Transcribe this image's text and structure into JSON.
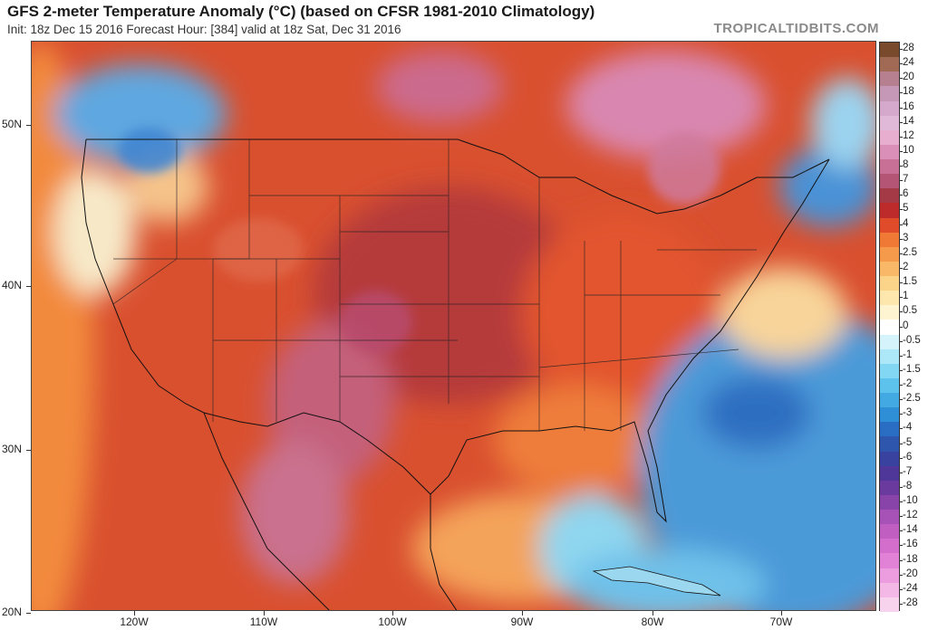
{
  "header": {
    "title": "GFS 2-meter Temperature Anomaly (°C) (based on CFSR 1981-2010 Climatology)",
    "subtitle": "Init: 18z Dec 15 2016   Forecast Hour: [384]   valid at 18z Sat, Dec 31 2016",
    "credit": "TROPICALTIDBITS.COM"
  },
  "map": {
    "lat_labels": [
      "50N",
      "40N",
      "30N",
      "20N"
    ],
    "lon_labels": [
      "120W",
      "110W",
      "100W",
      "90W",
      "80W",
      "70W"
    ],
    "regions": [
      {
        "name": "western-us-land",
        "anomaly": 4
      },
      {
        "name": "pacific-northwest",
        "anomaly": -2
      },
      {
        "name": "great-plains",
        "anomaly": 7
      },
      {
        "name": "hudson-bay-region",
        "anomaly": 16
      },
      {
        "name": "eastern-us",
        "anomaly": 5
      },
      {
        "name": "gulf-of-mexico",
        "anomaly": 2.5
      },
      {
        "name": "western-atlantic",
        "anomaly": -3
      },
      {
        "name": "nova-scotia-area",
        "anomaly": -3
      },
      {
        "name": "caribbean",
        "anomaly": -1
      }
    ]
  },
  "colorbar": {
    "labels": [
      "28",
      "24",
      "20",
      "18",
      "16",
      "14",
      "12",
      "10",
      "8",
      "7",
      "6",
      "5",
      "4",
      "3",
      "2.5",
      "2",
      "1.5",
      "1",
      "0.5",
      "0",
      "-0.5",
      "-1",
      "-1.5",
      "-2",
      "-2.5",
      "-3",
      "-4",
      "-5",
      "-6",
      "-7",
      "-8",
      "-10",
      "-12",
      "-14",
      "-16",
      "-18",
      "-20",
      "-24",
      "-28"
    ],
    "colors": [
      "#7a4a2c",
      "#a06a55",
      "#b68090",
      "#c698b8",
      "#d5a9cc",
      "#e0b8d8",
      "#e8aecf",
      "#d98fb7",
      "#c97096",
      "#b45575",
      "#a33a45",
      "#bd2b2b",
      "#e04b2a",
      "#f07a35",
      "#f59a4a",
      "#f8b868",
      "#fbd48a",
      "#fde7ac",
      "#fff4d2",
      "#ffffff",
      "#d4f3fb",
      "#ace8f7",
      "#82d8f2",
      "#5ec3ec",
      "#43a9e2",
      "#2f8fd6",
      "#2a6ec3",
      "#2f56ad",
      "#3a42a0",
      "#4f3699",
      "#6a3a9e",
      "#8844a8",
      "#a752b6",
      "#c05ec2",
      "#d46ecd",
      "#e282d6",
      "#ec9ddf",
      "#f3b8e6",
      "#f8d3ee"
    ]
  }
}
